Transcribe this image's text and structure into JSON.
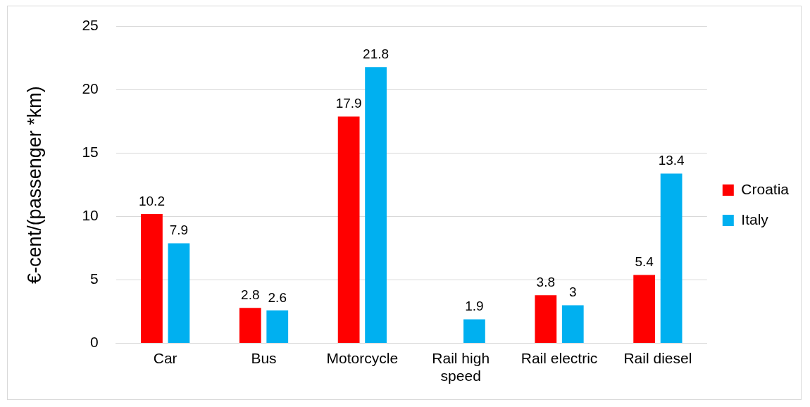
{
  "chart_data": {
    "type": "bar",
    "ylabel": "€-cent/(passenger *km)",
    "categories": [
      "Car",
      "Bus",
      "Motorcycle",
      "Rail high speed",
      "Rail electric",
      "Rail diesel"
    ],
    "series": [
      {
        "name": "Croatia",
        "color": "#ff0000",
        "values": [
          10.2,
          2.8,
          17.9,
          null,
          3.8,
          5.4
        ]
      },
      {
        "name": "Italy",
        "color": "#00b0f0",
        "values": [
          7.9,
          2.6,
          21.8,
          1.9,
          3,
          13.4
        ]
      }
    ],
    "ylim": [
      0,
      25
    ],
    "yticks": [
      0,
      5,
      10,
      15,
      20,
      25
    ],
    "grid": "y",
    "legend": "right",
    "data_labels": true
  }
}
